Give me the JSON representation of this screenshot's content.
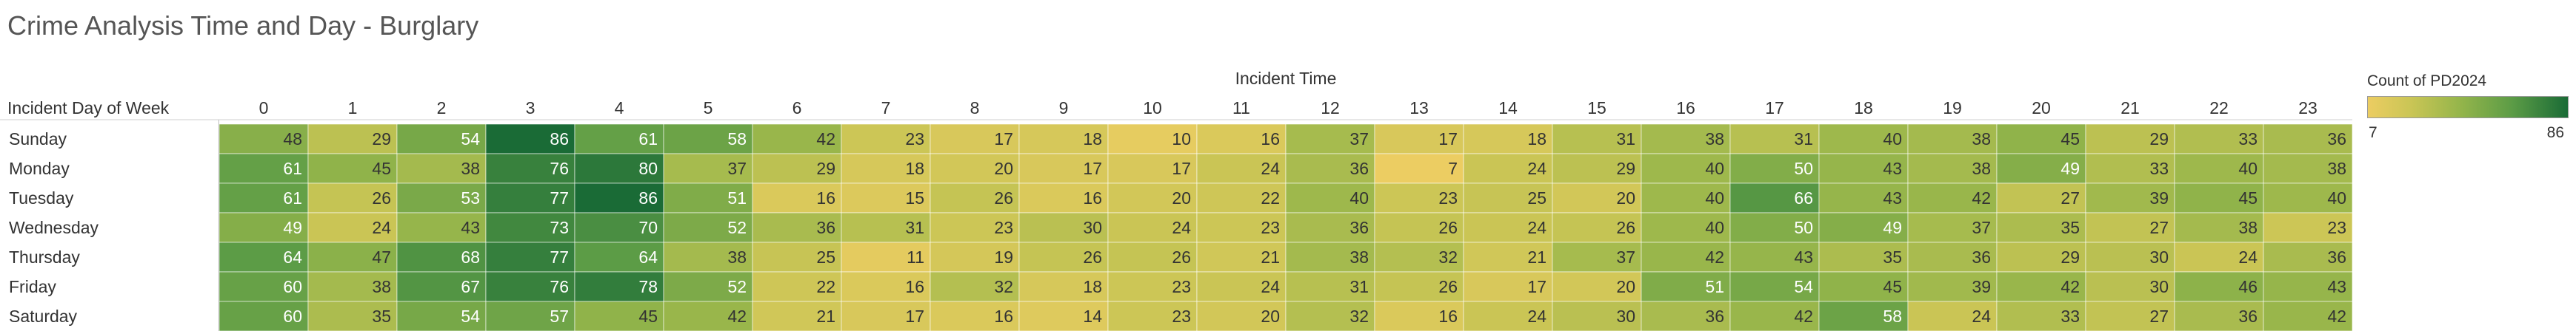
{
  "title": "Crime Analysis Time and Day - Burglary",
  "legend": {
    "title": "Count of PD2024",
    "min_label": "7",
    "max_label": "86"
  },
  "colors": {
    "low": "#eccd62",
    "mid_low": "#c9c555",
    "mid": "#97b64b",
    "mid_high": "#5c9c46",
    "high": "#1a6b36",
    "text_dark": "#333333",
    "text_light": "#ffffff"
  },
  "chart_data": {
    "type": "heatmap",
    "title": "Crime Analysis Time and Day - Burglary",
    "x_label": "Incident Time",
    "y_label": "Incident Day of Week",
    "x": [
      "0",
      "1",
      "2",
      "3",
      "4",
      "5",
      "6",
      "7",
      "8",
      "9",
      "10",
      "11",
      "12",
      "13",
      "14",
      "15",
      "16",
      "17",
      "18",
      "19",
      "20",
      "21",
      "22",
      "23"
    ],
    "y": [
      "Sunday",
      "Monday",
      "Tuesday",
      "Wednesday",
      "Thursday",
      "Friday",
      "Saturday"
    ],
    "values": [
      [
        48,
        29,
        54,
        86,
        61,
        58,
        42,
        23,
        17,
        18,
        10,
        16,
        37,
        17,
        18,
        31,
        38,
        31,
        40,
        38,
        45,
        29,
        33,
        36
      ],
      [
        61,
        45,
        38,
        76,
        80,
        37,
        29,
        18,
        20,
        17,
        17,
        24,
        36,
        7,
        24,
        29,
        40,
        50,
        43,
        38,
        49,
        33,
        40,
        38
      ],
      [
        61,
        26,
        53,
        77,
        86,
        51,
        16,
        15,
        26,
        16,
        20,
        22,
        40,
        23,
        25,
        20,
        40,
        66,
        43,
        42,
        27,
        39,
        45,
        40
      ],
      [
        49,
        24,
        43,
        73,
        70,
        52,
        36,
        31,
        23,
        30,
        24,
        23,
        36,
        26,
        24,
        26,
        40,
        50,
        49,
        37,
        35,
        27,
        38,
        23
      ],
      [
        64,
        47,
        68,
        77,
        64,
        38,
        25,
        11,
        19,
        26,
        26,
        21,
        38,
        32,
        21,
        37,
        42,
        43,
        35,
        36,
        29,
        30,
        24,
        36
      ],
      [
        60,
        38,
        67,
        76,
        78,
        52,
        22,
        16,
        32,
        18,
        23,
        24,
        31,
        26,
        17,
        20,
        51,
        54,
        45,
        39,
        42,
        30,
        46,
        43
      ],
      [
        60,
        35,
        54,
        57,
        45,
        42,
        21,
        17,
        16,
        14,
        23,
        20,
        32,
        16,
        24,
        30,
        36,
        42,
        58,
        24,
        33,
        27,
        36,
        42
      ]
    ],
    "color_range": [
      7,
      86
    ],
    "legend_title": "Count of PD2024"
  }
}
